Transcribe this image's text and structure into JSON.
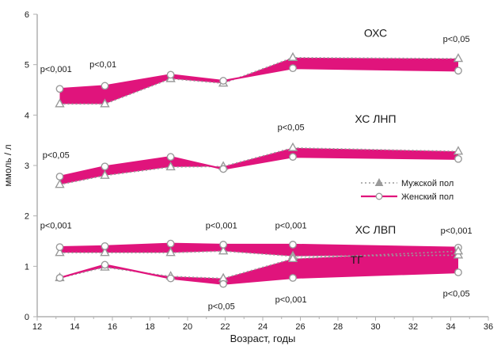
{
  "chart_data": {
    "type": "line",
    "xlabel": "Возраст, годы",
    "ylabel": "ммоль / л",
    "xlim": [
      12,
      36
    ],
    "ylim": [
      0,
      6
    ],
    "x_ticks": [
      "12",
      "14",
      "16",
      "18",
      "20",
      "22",
      "24",
      "26",
      "28",
      "30",
      "32",
      "34",
      "36"
    ],
    "y_ticks": [
      "0",
      "1",
      "2",
      "3",
      "4",
      "5",
      "6"
    ],
    "grid": false,
    "legend_position": "right",
    "legend": {
      "male": "Мужской пол",
      "female": "Женский пол"
    },
    "colors": {
      "male": "#9a9a9a",
      "female": "#e0147c",
      "axis": "#b0b0b0",
      "text": "#1a1a1a"
    },
    "groups": [
      {
        "label": "ОХС",
        "male": [
          [
            13.2,
            4.22
          ],
          [
            15.6,
            4.22
          ],
          [
            19.1,
            4.72
          ],
          [
            21.9,
            4.63
          ],
          [
            25.6,
            5.14
          ],
          [
            34.4,
            5.12
          ]
        ],
        "female": [
          [
            13.2,
            4.52
          ],
          [
            15.6,
            4.58
          ],
          [
            19.1,
            4.8
          ],
          [
            21.9,
            4.68
          ],
          [
            25.6,
            4.93
          ],
          [
            34.4,
            4.88
          ]
        ]
      },
      {
        "label": "ХС ЛНП",
        "male": [
          [
            13.2,
            2.62
          ],
          [
            15.6,
            2.8
          ],
          [
            19.1,
            2.97
          ],
          [
            21.9,
            2.98
          ],
          [
            25.6,
            3.35
          ],
          [
            34.4,
            3.28
          ]
        ],
        "female": [
          [
            13.2,
            2.78
          ],
          [
            15.6,
            2.98
          ],
          [
            19.1,
            3.17
          ],
          [
            21.9,
            2.93
          ],
          [
            25.6,
            3.17
          ],
          [
            34.4,
            3.13
          ]
        ]
      },
      {
        "label": "ХС ЛВП",
        "male": [
          [
            13.2,
            1.27
          ],
          [
            15.6,
            1.27
          ],
          [
            19.1,
            1.27
          ],
          [
            21.9,
            1.3
          ],
          [
            25.6,
            1.2
          ],
          [
            34.4,
            1.22
          ]
        ],
        "female": [
          [
            13.2,
            1.38
          ],
          [
            15.6,
            1.4
          ],
          [
            19.1,
            1.45
          ],
          [
            21.9,
            1.43
          ],
          [
            25.6,
            1.43
          ],
          [
            34.4,
            1.37
          ]
        ]
      },
      {
        "label": "ТГ",
        "male": [
          [
            13.2,
            0.77
          ],
          [
            15.6,
            0.98
          ],
          [
            19.1,
            0.8
          ],
          [
            21.9,
            0.76
          ],
          [
            25.6,
            1.15
          ],
          [
            34.4,
            1.3
          ]
        ],
        "female": [
          [
            13.2,
            0.77
          ],
          [
            15.6,
            1.03
          ],
          [
            19.1,
            0.76
          ],
          [
            21.9,
            0.65
          ],
          [
            25.6,
            0.77
          ],
          [
            34.4,
            0.88
          ]
        ]
      }
    ],
    "annotations": [
      {
        "text": "p<0,001",
        "x": 13.0,
        "y": 4.85
      },
      {
        "text": "p<0,01",
        "x": 15.5,
        "y": 4.95
      },
      {
        "text": "p<0,05",
        "x": 34.3,
        "y": 5.45
      },
      {
        "text": "p<0,05",
        "x": 13.0,
        "y": 3.15
      },
      {
        "text": "p<0,05",
        "x": 25.5,
        "y": 3.7
      },
      {
        "text": "p<0,001",
        "x": 13.0,
        "y": 1.75
      },
      {
        "text": "p<0,001",
        "x": 21.8,
        "y": 1.75
      },
      {
        "text": "p<0,001",
        "x": 25.5,
        "y": 1.75
      },
      {
        "text": "p<0,001",
        "x": 34.3,
        "y": 1.65
      },
      {
        "text": "p<0,05",
        "x": 21.8,
        "y": 0.15
      },
      {
        "text": "p<0,001",
        "x": 25.5,
        "y": 0.28
      },
      {
        "text": "p<0,05",
        "x": 34.3,
        "y": 0.4
      }
    ],
    "group_title_positions": [
      {
        "x": 30.0,
        "y": 5.55
      },
      {
        "x": 30.0,
        "y": 3.85
      },
      {
        "x": 30.0,
        "y": 1.65
      },
      {
        "x": 29.0,
        "y": 1.05
      }
    ]
  }
}
